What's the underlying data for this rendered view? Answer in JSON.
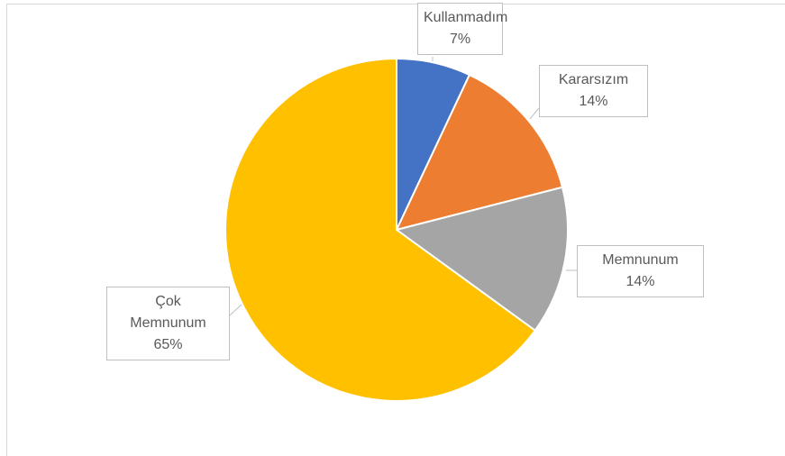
{
  "chart_data": {
    "type": "pie",
    "categories": [
      "Kullanmadım",
      "Kararsızım",
      "Memnunum",
      "Çok Memnunum"
    ],
    "values": [
      7,
      14,
      14,
      65
    ],
    "value_labels": [
      "7%",
      "14%",
      "14%",
      "65%"
    ],
    "colors": [
      "#4472c4",
      "#ed7d31",
      "#a5a5a5",
      "#ffc000"
    ]
  }
}
